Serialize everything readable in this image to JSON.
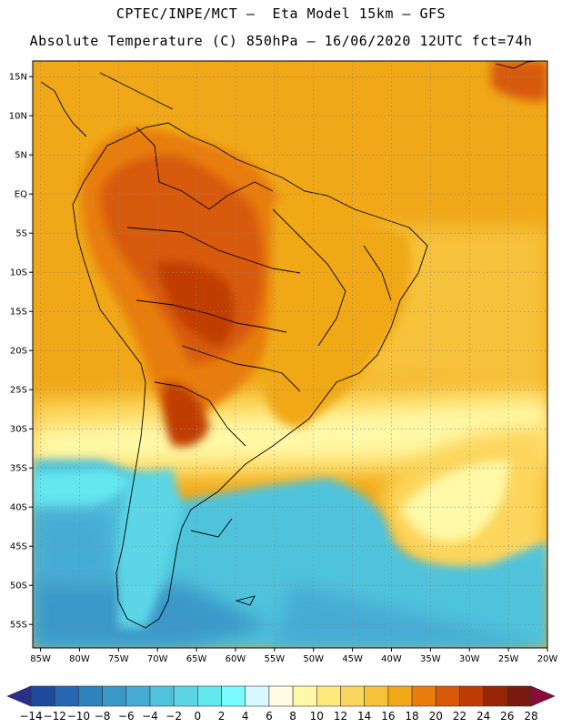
{
  "header": {
    "line1": "CPTEC/INPE/MCT –  Eta Model 15km – GFS",
    "line2": "Absolute Temperature (C) 850hPa – 16/06/2020 12UTC fct=74h"
  },
  "map": {
    "lon_range": [
      -86,
      -20
    ],
    "lat_range": [
      -58,
      17
    ],
    "lon_ticks": [
      {
        "value": -85,
        "label": "85W"
      },
      {
        "value": -80,
        "label": "80W"
      },
      {
        "value": -75,
        "label": "75W"
      },
      {
        "value": -70,
        "label": "70W"
      },
      {
        "value": -65,
        "label": "65W"
      },
      {
        "value": -60,
        "label": "60W"
      },
      {
        "value": -55,
        "label": "55W"
      },
      {
        "value": -50,
        "label": "50W"
      },
      {
        "value": -45,
        "label": "45W"
      },
      {
        "value": -40,
        "label": "40W"
      },
      {
        "value": -35,
        "label": "35W"
      },
      {
        "value": -30,
        "label": "30W"
      },
      {
        "value": -25,
        "label": "25W"
      },
      {
        "value": -20,
        "label": "20W"
      }
    ],
    "lat_ticks": [
      {
        "value": 15,
        "label": "15N"
      },
      {
        "value": 10,
        "label": "10N"
      },
      {
        "value": 5,
        "label": "5N"
      },
      {
        "value": 0,
        "label": "EQ"
      },
      {
        "value": -5,
        "label": "5S"
      },
      {
        "value": -10,
        "label": "10S"
      },
      {
        "value": -15,
        "label": "15S"
      },
      {
        "value": -20,
        "label": "20S"
      },
      {
        "value": -25,
        "label": "25S"
      },
      {
        "value": -30,
        "label": "30S"
      },
      {
        "value": -35,
        "label": "35S"
      },
      {
        "value": -40,
        "label": "40S"
      },
      {
        "value": -45,
        "label": "45S"
      },
      {
        "value": -50,
        "label": "50S"
      },
      {
        "value": -55,
        "label": "55S"
      }
    ],
    "grid": true
  },
  "colorbar": {
    "levels": [
      -14,
      -12,
      -10,
      -8,
      -6,
      -4,
      -2,
      0,
      2,
      4,
      6,
      8,
      10,
      12,
      14,
      16,
      18,
      20,
      22,
      24,
      26,
      28
    ],
    "colors": [
      "#2a2f8c",
      "#1e4a9c",
      "#2567b0",
      "#2e82be",
      "#3a98c8",
      "#46acd4",
      "#4fc3dc",
      "#5cd6e6",
      "#64e8f0",
      "#7afbff",
      "#d8f8ff",
      "#fffbe4",
      "#fff8a6",
      "#ffe97a",
      "#fcd65c",
      "#f6c23a",
      "#f0a818",
      "#e87d0c",
      "#d85a08",
      "#c03c06",
      "#9a2406",
      "#7a1a10",
      "#8a0a3a"
    ]
  }
}
